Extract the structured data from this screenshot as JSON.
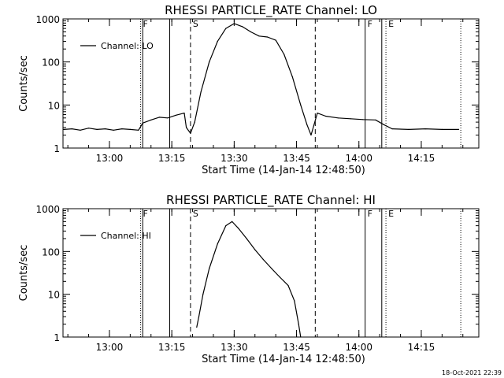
{
  "timestamp": "18-Oct-2021 22:39",
  "chart_data": [
    {
      "type": "line",
      "title": "RHESSI PARTICLE_RATE Channel: LO",
      "xlabel": "Start Time (14-Jan-14 12:48:50)",
      "ylabel": "Counts/sec",
      "legend": "Channel: LO",
      "legend_position": "top-left",
      "y_scale": "log",
      "xlim": [
        "12:48:50",
        "14:28:50"
      ],
      "ylim": [
        1,
        1000
      ],
      "x_ticks": [
        "13:00",
        "13:15",
        "13:30",
        "13:45",
        "14:00",
        "14:15"
      ],
      "y_ticks": [
        "1",
        "10",
        "100",
        "1000"
      ],
      "markers": [
        {
          "label": "F",
          "time": "13:07:30",
          "style": "dotted"
        },
        {
          "label": "",
          "time": "13:08:00",
          "style": "solid"
        },
        {
          "label": "",
          "time": "13:14:30",
          "style": "solid"
        },
        {
          "label": "S",
          "time": "13:19:30",
          "style": "dashed"
        },
        {
          "label": "",
          "time": "13:49:30",
          "style": "dashed"
        },
        {
          "label": "F",
          "time": "14:01:30",
          "style": "solid"
        },
        {
          "label": "",
          "time": "14:05:30",
          "style": "solid"
        },
        {
          "label": "E",
          "time": "14:06:30",
          "style": "dotted"
        },
        {
          "label": "",
          "time": "14:24:30",
          "style": "dotted"
        }
      ],
      "series": [
        {
          "name": "Channel: LO",
          "points": [
            [
              "12:49:00",
              2.7
            ],
            [
              "12:51:00",
              2.8
            ],
            [
              "12:53:00",
              2.6
            ],
            [
              "12:55:00",
              2.9
            ],
            [
              "12:57:00",
              2.7
            ],
            [
              "12:59:00",
              2.8
            ],
            [
              "13:01:00",
              2.6
            ],
            [
              "13:03:00",
              2.8
            ],
            [
              "13:05:00",
              2.7
            ],
            [
              "13:07:00",
              2.6
            ],
            [
              "13:08:00",
              3.8
            ],
            [
              "13:10:00",
              4.5
            ],
            [
              "13:12:00",
              5.2
            ],
            [
              "13:14:00",
              5.0
            ],
            [
              "13:16:00",
              5.8
            ],
            [
              "13:18:00",
              6.5
            ],
            [
              "13:18:30",
              3.0
            ],
            [
              "13:19:30",
              2.2
            ],
            [
              "13:20:30",
              4.0
            ],
            [
              "13:22:00",
              20
            ],
            [
              "13:24:00",
              100
            ],
            [
              "13:26:00",
              300
            ],
            [
              "13:28:00",
              600
            ],
            [
              "13:30:00",
              780
            ],
            [
              "13:32:00",
              660
            ],
            [
              "13:34:00",
              500
            ],
            [
              "13:36:00",
              400
            ],
            [
              "13:38:00",
              380
            ],
            [
              "13:40:00",
              320
            ],
            [
              "13:42:00",
              150
            ],
            [
              "13:44:00",
              45
            ],
            [
              "13:46:00",
              10
            ],
            [
              "13:47:30",
              3.5
            ],
            [
              "13:48:30",
              2.0
            ],
            [
              "13:50:00",
              6.5
            ],
            [
              "13:52:00",
              5.5
            ],
            [
              "13:55:00",
              5.0
            ],
            [
              "13:58:00",
              4.8
            ],
            [
              "14:01:00",
              4.6
            ],
            [
              "14:04:00",
              4.5
            ],
            [
              "14:06:00",
              3.5
            ],
            [
              "14:08:00",
              2.8
            ],
            [
              "14:12:00",
              2.7
            ],
            [
              "14:16:00",
              2.8
            ],
            [
              "14:20:00",
              2.7
            ],
            [
              "14:24:00",
              2.7
            ]
          ]
        }
      ]
    },
    {
      "type": "line",
      "title": "RHESSI PARTICLE_RATE Channel: HI",
      "xlabel": "Start Time (14-Jan-14 12:48:50)",
      "ylabel": "Counts/sec",
      "legend": "Channel: HI",
      "legend_position": "top-left",
      "y_scale": "log",
      "xlim": [
        "12:48:50",
        "14:28:50"
      ],
      "ylim": [
        1,
        1000
      ],
      "x_ticks": [
        "13:00",
        "13:15",
        "13:30",
        "13:45",
        "14:00",
        "14:15"
      ],
      "y_ticks": [
        "1",
        "10",
        "100",
        "1000"
      ],
      "markers": [
        {
          "label": "F",
          "time": "13:07:30",
          "style": "dotted"
        },
        {
          "label": "",
          "time": "13:08:00",
          "style": "solid"
        },
        {
          "label": "",
          "time": "13:14:30",
          "style": "solid"
        },
        {
          "label": "S",
          "time": "13:19:30",
          "style": "dashed"
        },
        {
          "label": "",
          "time": "13:49:30",
          "style": "dashed"
        },
        {
          "label": "F",
          "time": "14:01:30",
          "style": "solid"
        },
        {
          "label": "",
          "time": "14:05:30",
          "style": "solid"
        },
        {
          "label": "E",
          "time": "14:06:30",
          "style": "dotted"
        },
        {
          "label": "",
          "time": "14:24:30",
          "style": "dotted"
        }
      ],
      "series": [
        {
          "name": "Channel: HI",
          "points": [
            [
              "13:21:00",
              1.7
            ],
            [
              "13:21:30",
              3.0
            ],
            [
              "13:22:30",
              10
            ],
            [
              "13:24:00",
              40
            ],
            [
              "13:26:00",
              150
            ],
            [
              "13:28:00",
              400
            ],
            [
              "13:29:30",
              500
            ],
            [
              "13:31:00",
              350
            ],
            [
              "13:33:00",
              200
            ],
            [
              "13:35:00",
              110
            ],
            [
              "13:37:00",
              65
            ],
            [
              "13:39:00",
              40
            ],
            [
              "13:41:00",
              25
            ],
            [
              "13:43:00",
              16
            ],
            [
              "13:44:30",
              7
            ],
            [
              "13:45:30",
              2.0
            ],
            [
              "13:46:00",
              1.0
            ]
          ]
        }
      ]
    }
  ]
}
